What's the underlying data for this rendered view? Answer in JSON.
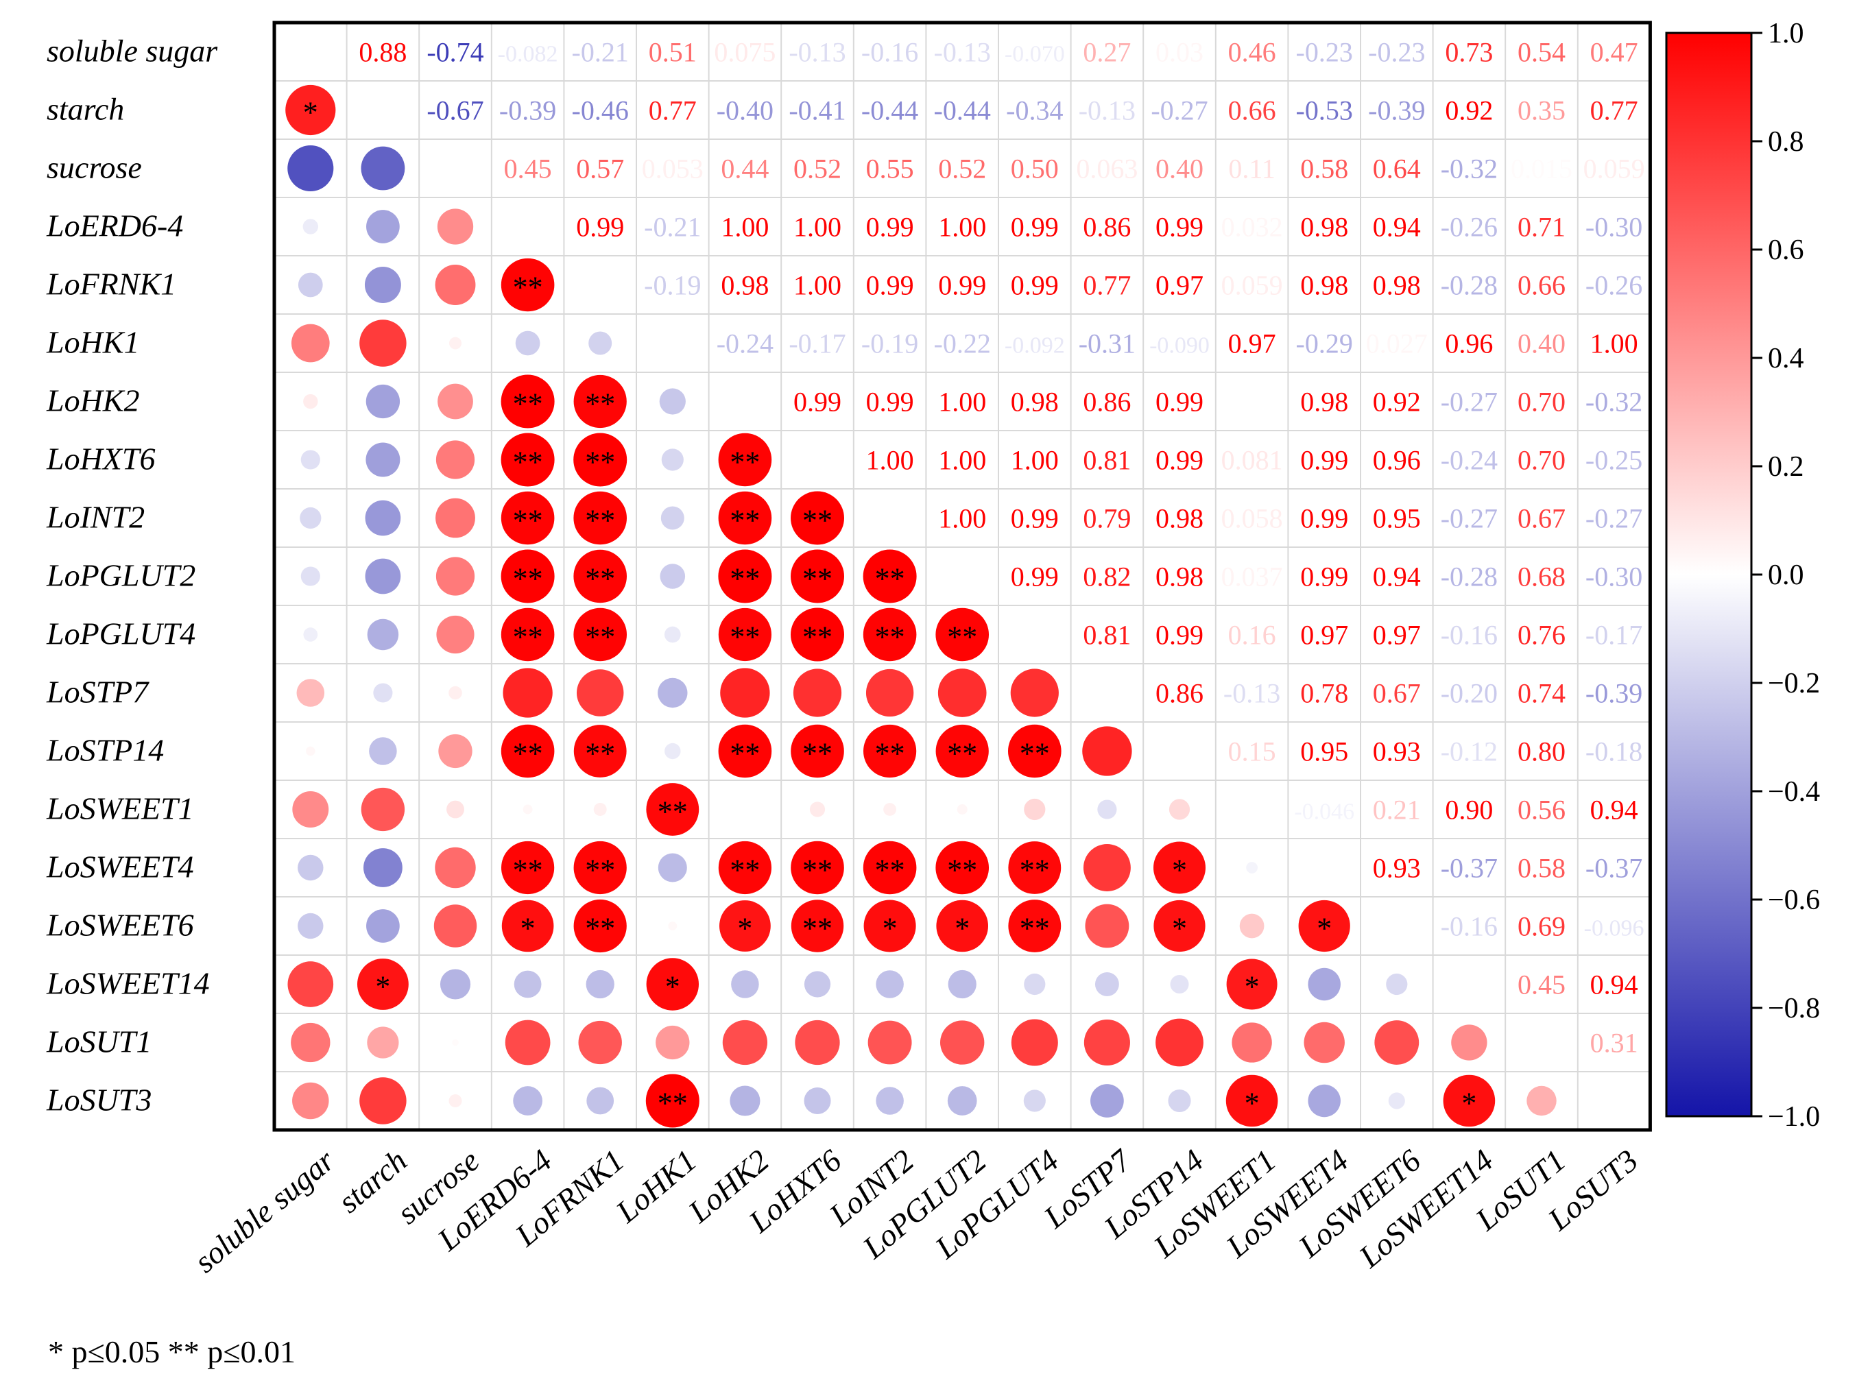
{
  "chart_data": {
    "type": "heatmap",
    "subtype": "correlation-matrix",
    "variables": [
      "soluble sugar",
      "starch",
      "sucrose",
      "LoERD6-4",
      "LoFRNK1",
      "LoHK1",
      "LoHK2",
      "LoHXT6",
      "LoINT2",
      "LoPGLUT2",
      "LoPGLUT4",
      "LoSTP7",
      "LoSTP14",
      "LoSWEET1",
      "LoSWEET4",
      "LoSWEET6",
      "LoSWEET14",
      "LoSUT1",
      "LoSUT3"
    ],
    "upper_triangle_labels": [
      [
        "",
        "0.88",
        "-0.74",
        "-0.082",
        "-0.21",
        "0.51",
        "0.075",
        "-0.13",
        "-0.16",
        "-0.13",
        "-0.070",
        "0.27",
        "0.03",
        "0.46",
        "-0.23",
        "-0.23",
        "0.73",
        "0.54",
        "0.47"
      ],
      [
        "",
        "",
        "-0.67",
        "-0.39",
        "-0.46",
        "0.77",
        "-0.40",
        "-0.41",
        "-0.44",
        "-0.44",
        "-0.34",
        "-0.13",
        "-0.27",
        "0.66",
        "-0.53",
        "-0.39",
        "0.92",
        "0.35",
        "0.77"
      ],
      [
        "",
        "",
        "",
        "0.45",
        "0.57",
        "0.053",
        "0.44",
        "0.52",
        "0.55",
        "0.52",
        "0.50",
        "0.063",
        "0.40",
        "0.11",
        "0.58",
        "0.64",
        "-0.32",
        "0.015",
        "0.059"
      ],
      [
        "",
        "",
        "",
        "",
        "0.99",
        "-0.21",
        "1.00",
        "1.00",
        "0.99",
        "1.00",
        "0.99",
        "0.86",
        "0.99",
        "0.032",
        "0.98",
        "0.94",
        "-0.26",
        "0.71",
        "-0.30"
      ],
      [
        "",
        "",
        "",
        "",
        "",
        "-0.19",
        "0.98",
        "1.00",
        "0.99",
        "0.99",
        "0.99",
        "0.77",
        "0.97",
        "0.059",
        "0.98",
        "0.98",
        "-0.28",
        "0.66",
        "-0.26"
      ],
      [
        "",
        "",
        "",
        "",
        "",
        "",
        "-0.24",
        "-0.17",
        "-0.19",
        "-0.22",
        "-0.092",
        "-0.31",
        "-0.090",
        "0.97",
        "-0.29",
        "0.027",
        "0.96",
        "0.40",
        "1.00"
      ],
      [
        "",
        "",
        "",
        "",
        "",
        "",
        "",
        "0.99",
        "0.99",
        "1.00",
        "0.98",
        "0.86",
        "0.99",
        "",
        "0.98",
        "0.92",
        "-0.27",
        "0.70",
        "-0.32"
      ],
      [
        "",
        "",
        "",
        "",
        "",
        "",
        "",
        "",
        "1.00",
        "1.00",
        "1.00",
        "0.81",
        "0.99",
        "0.081",
        "0.99",
        "0.96",
        "-0.24",
        "0.70",
        "-0.25"
      ],
      [
        "",
        "",
        "",
        "",
        "",
        "",
        "",
        "",
        "",
        "1.00",
        "0.99",
        "0.79",
        "0.98",
        "0.058",
        "0.99",
        "0.95",
        "-0.27",
        "0.67",
        "-0.27"
      ],
      [
        "",
        "",
        "",
        "",
        "",
        "",
        "",
        "",
        "",
        "",
        "0.99",
        "0.82",
        "0.98",
        "0.037",
        "0.99",
        "0.94",
        "-0.28",
        "0.68",
        "-0.30"
      ],
      [
        "",
        "",
        "",
        "",
        "",
        "",
        "",
        "",
        "",
        "",
        "",
        "0.81",
        "0.99",
        "0.16",
        "0.97",
        "0.97",
        "-0.16",
        "0.76",
        "-0.17"
      ],
      [
        "",
        "",
        "",
        "",
        "",
        "",
        "",
        "",
        "",
        "",
        "",
        "",
        "0.86",
        "-0.13",
        "0.78",
        "0.67",
        "-0.20",
        "0.74",
        "-0.39"
      ],
      [
        "",
        "",
        "",
        "",
        "",
        "",
        "",
        "",
        "",
        "",
        "",
        "",
        "",
        "0.15",
        "0.95",
        "0.93",
        "-0.12",
        "0.80",
        "-0.18"
      ],
      [
        "",
        "",
        "",
        "",
        "",
        "",
        "",
        "",
        "",
        "",
        "",
        "",
        "",
        "",
        "-0.046",
        "0.21",
        "0.90",
        "0.56",
        "0.94"
      ],
      [
        "",
        "",
        "",
        "",
        "",
        "",
        "",
        "",
        "",
        "",
        "",
        "",
        "",
        "",
        "",
        "0.93",
        "-0.37",
        "0.58",
        "-0.37"
      ],
      [
        "",
        "",
        "",
        "",
        "",
        "",
        "",
        "",
        "",
        "",
        "",
        "",
        "",
        "",
        "",
        "",
        "-0.16",
        "0.69",
        "-0.096"
      ],
      [
        "",
        "",
        "",
        "",
        "",
        "",
        "",
        "",
        "",
        "",
        "",
        "",
        "",
        "",
        "",
        "",
        "",
        "0.45",
        "0.94"
      ],
      [
        "",
        "",
        "",
        "",
        "",
        "",
        "",
        "",
        "",
        "",
        "",
        "",
        "",
        "",
        "",
        "",
        "",
        "",
        "0.31"
      ],
      [
        "",
        "",
        "",
        "",
        "",
        "",
        "",
        "",
        "",
        "",
        "",
        "",
        "",
        "",
        "",
        "",
        "",
        "",
        ""
      ]
    ],
    "significance": [
      [
        "",
        "",
        "",
        "",
        "",
        "",
        "",
        "",
        "",
        "",
        "",
        "",
        "",
        "",
        "",
        "",
        "",
        "",
        ""
      ],
      [
        "*",
        "",
        "",
        "",
        "",
        "",
        "",
        "",
        "",
        "",
        "",
        "",
        "",
        "",
        "",
        "",
        "",
        "",
        ""
      ],
      [
        "",
        "",
        "",
        "",
        "",
        "",
        "",
        "",
        "",
        "",
        "",
        "",
        "",
        "",
        "",
        "",
        "",
        "",
        ""
      ],
      [
        "",
        "",
        "",
        "",
        "",
        "",
        "",
        "",
        "",
        "",
        "",
        "",
        "",
        "",
        "",
        "",
        "",
        "",
        ""
      ],
      [
        "",
        "",
        "",
        "**",
        "",
        "",
        "",
        "",
        "",
        "",
        "",
        "",
        "",
        "",
        "",
        "",
        "",
        "",
        ""
      ],
      [
        "",
        "",
        "",
        "",
        "",
        "",
        "",
        "",
        "",
        "",
        "",
        "",
        "",
        "",
        "",
        "",
        "",
        "",
        ""
      ],
      [
        "",
        "",
        "",
        "**",
        "**",
        "",
        "",
        "",
        "",
        "",
        "",
        "",
        "",
        "",
        "",
        "",
        "",
        "",
        ""
      ],
      [
        "",
        "",
        "",
        "**",
        "**",
        "",
        "**",
        "",
        "",
        "",
        "",
        "",
        "",
        "",
        "",
        "",
        "",
        "",
        ""
      ],
      [
        "",
        "",
        "",
        "**",
        "**",
        "",
        "**",
        "**",
        "",
        "",
        "",
        "",
        "",
        "",
        "",
        "",
        "",
        "",
        ""
      ],
      [
        "",
        "",
        "",
        "**",
        "**",
        "",
        "**",
        "**",
        "**",
        "",
        "",
        "",
        "",
        "",
        "",
        "",
        "",
        "",
        ""
      ],
      [
        "",
        "",
        "",
        "**",
        "**",
        "",
        "**",
        "**",
        "**",
        "**",
        "",
        "",
        "",
        "",
        "",
        "",
        "",
        "",
        ""
      ],
      [
        "",
        "",
        "",
        "",
        "",
        "",
        "",
        "",
        "",
        "",
        "",
        "",
        "",
        "",
        "",
        "",
        "",
        "",
        ""
      ],
      [
        "",
        "",
        "",
        "**",
        "**",
        "",
        "**",
        "**",
        "**",
        "**",
        "**",
        "",
        "",
        "",
        "",
        "",
        "",
        "",
        ""
      ],
      [
        "",
        "",
        "",
        "",
        "",
        "**",
        "",
        "",
        "",
        "",
        "",
        "",
        "",
        "",
        "",
        "",
        "",
        "",
        ""
      ],
      [
        "",
        "",
        "",
        "**",
        "**",
        "",
        "**",
        "**",
        "**",
        "**",
        "**",
        "",
        "*",
        "",
        "",
        "",
        "",
        "",
        ""
      ],
      [
        "",
        "",
        "",
        "*",
        "**",
        "",
        "*",
        "**",
        "*",
        "*",
        "**",
        "",
        "*",
        "",
        "*",
        "",
        "",
        "",
        ""
      ],
      [
        "",
        "*",
        "",
        "",
        "",
        "*",
        "",
        "",
        "",
        "",
        "",
        "",
        "",
        "*",
        "",
        "",
        "",
        "",
        ""
      ],
      [
        "",
        "",
        "",
        "",
        "",
        "",
        "",
        "",
        "",
        "",
        "",
        "",
        "",
        "",
        "",
        "",
        "",
        "",
        ""
      ],
      [
        "",
        "",
        "",
        "",
        "",
        "**",
        "",
        "",
        "",
        "",
        "",
        "",
        "",
        "*",
        "",
        "",
        "*",
        "",
        ""
      ]
    ],
    "colorbar": {
      "range": [
        -1.0,
        1.0
      ],
      "ticks": [
        "1.0",
        "0.8",
        "0.6",
        "0.4",
        "0.2",
        "0.0",
        "−0.2",
        "−0.4",
        "−0.6",
        "−0.8",
        "−1.0"
      ],
      "colors": {
        "negative": "#1414a8",
        "zero": "#ffffff",
        "positive": "#ff0000"
      }
    },
    "footnote": "* p≤0.05 ** p≤0.01"
  }
}
